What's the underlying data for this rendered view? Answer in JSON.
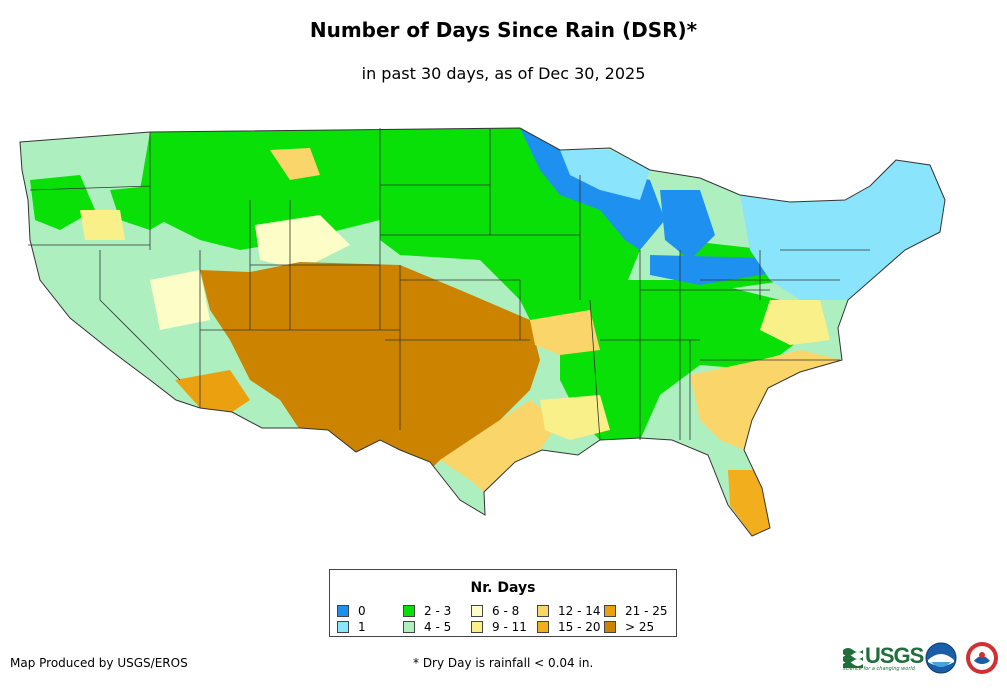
{
  "header": {
    "title": "Number of Days Since Rain (DSR)*",
    "subtitle": "in past 30 days, as of Dec 30, 2025"
  },
  "legend": {
    "title": "Nr. Days",
    "items": [
      {
        "label": "0",
        "color": "#1e90f0"
      },
      {
        "label": "1",
        "color": "#8ae4fb"
      },
      {
        "label": "2 - 3",
        "color": "#08e008"
      },
      {
        "label": "4 - 5",
        "color": "#aeefc0"
      },
      {
        "label": "6 - 8",
        "color": "#fdfdc8"
      },
      {
        "label": "9 - 11",
        "color": "#faf08a"
      },
      {
        "label": "12 - 14",
        "color": "#fad66a"
      },
      {
        "label": "15 - 20",
        "color": "#f3ae1e"
      },
      {
        "label": "21 - 25",
        "color": "#eba010"
      },
      {
        "label": "> 25",
        "color": "#cc8400"
      }
    ]
  },
  "footer": {
    "producer": "Map Produced by USGS/EROS",
    "note": "* Dry Day is rainfall < 0.04 in."
  },
  "logos": {
    "usgs": "USGS",
    "usgs_tagline": "science for a changing world",
    "icons": [
      "usgs-logo-icon",
      "noaa-logo-icon",
      "nws-logo-icon"
    ]
  }
}
